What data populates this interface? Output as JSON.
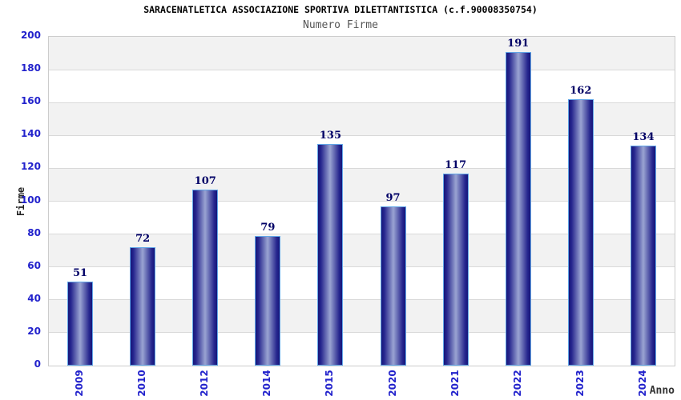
{
  "header": {
    "title": "SARACENATLETICA ASSOCIAZIONE SPORTIVA DILETTANTISTICA (c.f.90008350754)",
    "subtitle": "Numero Firme"
  },
  "chart_data": {
    "type": "bar",
    "title": "SARACENATLETICA ASSOCIAZIONE SPORTIVA DILETTANTISTICA (c.f.90008350754)",
    "subtitle": "Numero Firme",
    "categories": [
      "2009",
      "2010",
      "2012",
      "2014",
      "2015",
      "2020",
      "2021",
      "2022",
      "2023",
      "2024"
    ],
    "values": [
      51,
      72,
      107,
      79,
      135,
      97,
      117,
      191,
      162,
      134
    ],
    "xlabel": "Anno",
    "ylabel": "Firme",
    "ylim": [
      0,
      200
    ],
    "ytick_step": 20,
    "yticks": [
      0,
      20,
      40,
      60,
      80,
      100,
      120,
      140,
      160,
      180,
      200
    ],
    "grid": true,
    "legend": "none",
    "colors": {
      "tick_label": "#2222cc",
      "value_label": "#000066",
      "band_gray": "#f2f2f2",
      "band_white": "#ffffff",
      "gridline": "#d9d9d9",
      "plot_border": "#cccccc",
      "bar_edge_dark": "#16167a",
      "bar_mid_dark": "#26268e",
      "bar_center_light": "#9aa4d2",
      "bar_outline": "#62a7e8",
      "title_color": "#000000",
      "subtitle_color": "#555555"
    }
  }
}
